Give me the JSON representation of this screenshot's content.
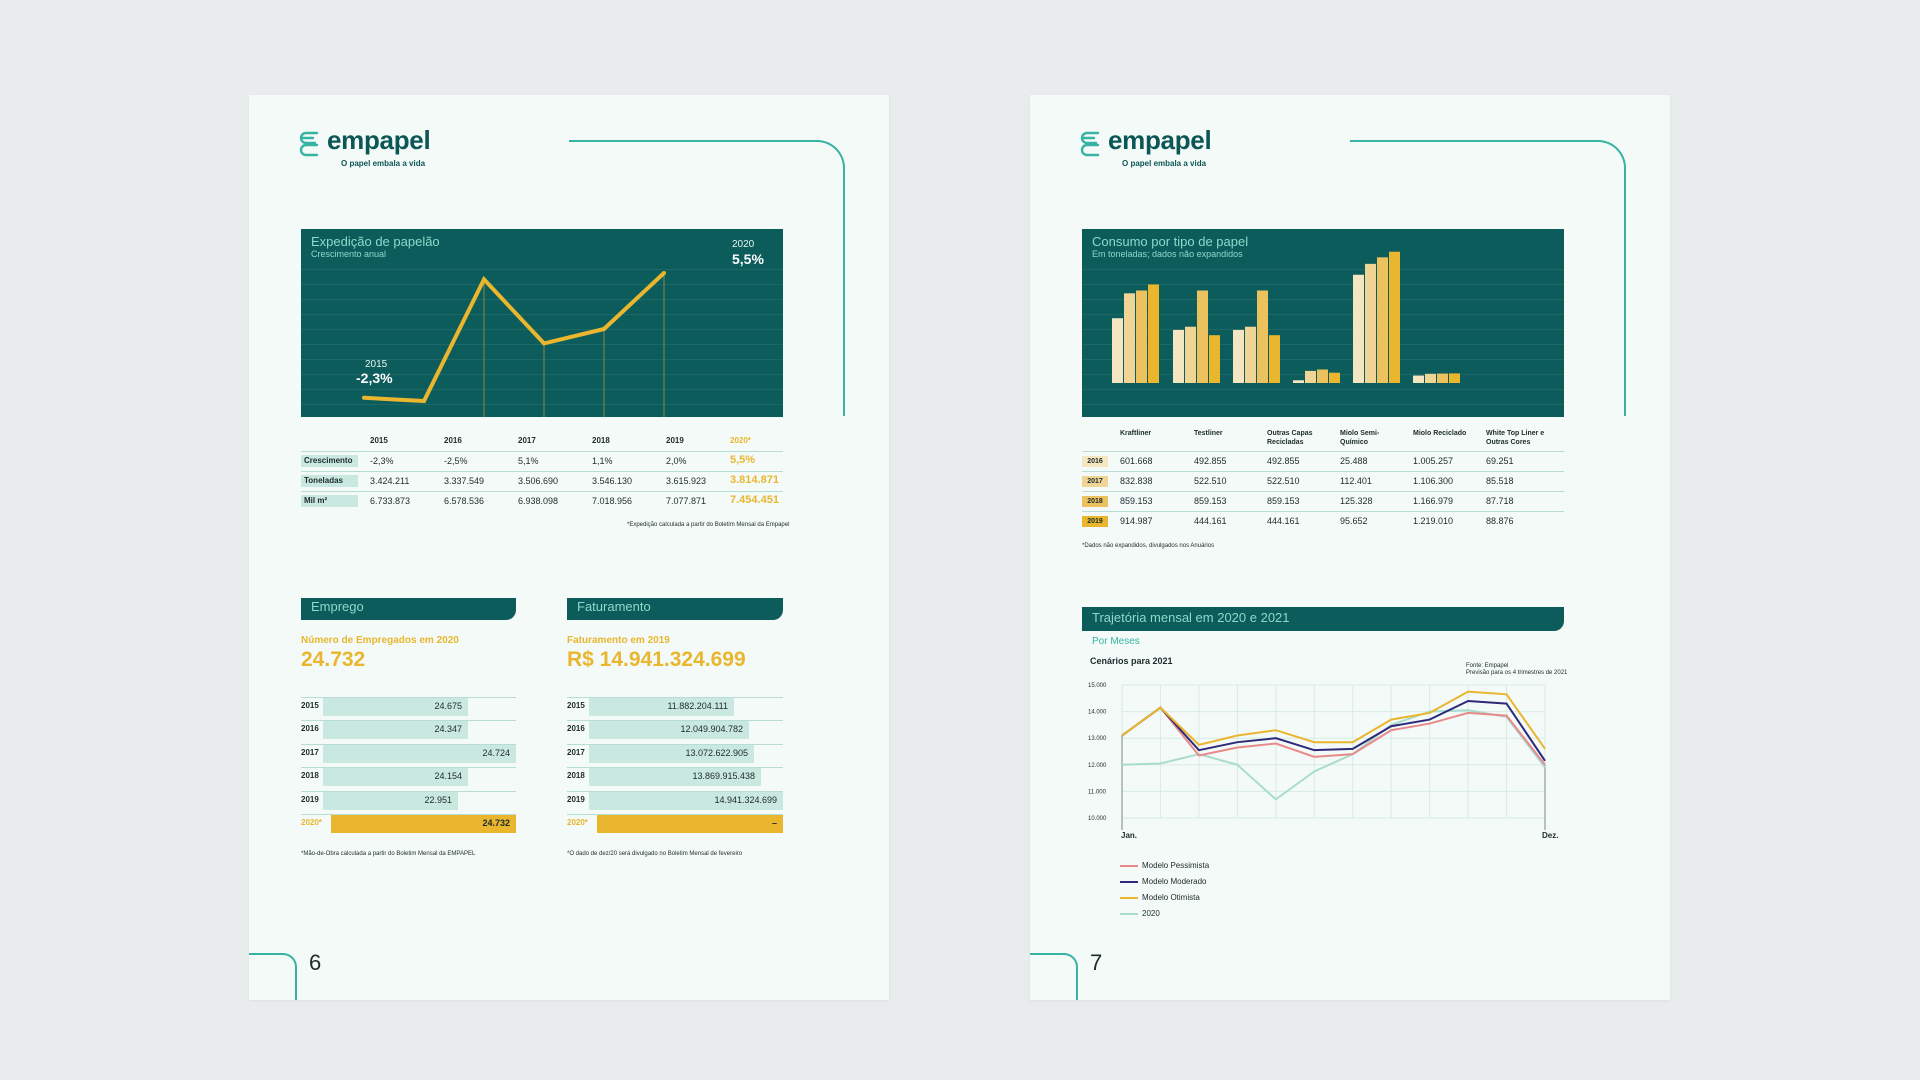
{
  "brand": {
    "name": "empapel",
    "tagline": "O papel embala a vida",
    "colors": {
      "teal_dark": "#0d5c5c",
      "accent_teal": "#36b3a3",
      "gold": "#e9b62e",
      "mint": "#c9e8df"
    }
  },
  "page6": {
    "page_number": "6",
    "expedicao": {
      "title": "Expedição de papelão",
      "subtitle": "Crescimento anual",
      "label_2015_year": "2015",
      "label_2015_value": "-2,3%",
      "label_2020_year": "2020",
      "label_2020_value": "5,5%",
      "years": [
        "2015",
        "2016",
        "2017",
        "2018",
        "2019",
        "2020*"
      ],
      "rows": [
        {
          "label": "Crescimento",
          "values": [
            "-2,3%",
            "-2,5%",
            "5,1%",
            "1,1%",
            "2,0%",
            "5,5%"
          ]
        },
        {
          "label": "Toneladas",
          "values": [
            "3.424.211",
            "3.337.549",
            "3.506.690",
            "3.546.130",
            "3.615.923",
            "3.814.871"
          ]
        },
        {
          "label": "Mil m²",
          "values": [
            "6.733.873",
            "6.578.536",
            "6.938.098",
            "7.018.956",
            "7.077.871",
            "7.454.451"
          ]
        }
      ],
      "footnote": "*Expedição calculada a partir do Boletim Mensal da Empapel"
    },
    "emprego": {
      "header": "Emprego",
      "label": "Número de Empregados em 2020",
      "big_value": "24.732",
      "rows": [
        {
          "year": "2015",
          "value": "24.675"
        },
        {
          "year": "2016",
          "value": "24.347"
        },
        {
          "year": "2017",
          "value": "24.724"
        },
        {
          "year": "2018",
          "value": "24.154"
        },
        {
          "year": "2019",
          "value": "22.951"
        },
        {
          "year": "2020*",
          "value": "24.732"
        }
      ],
      "footnote": "*Mão-de-Obra calculada a partir do Boletim Mensal da EMPAPEL"
    },
    "faturamento": {
      "header": "Faturamento",
      "label": "Faturamento em 2019",
      "big_value": "R$ 14.941.324.699",
      "rows": [
        {
          "year": "2015",
          "value": "11.882.204.111"
        },
        {
          "year": "2016",
          "value": "12.049.904.782"
        },
        {
          "year": "2017",
          "value": "13.072.622.905"
        },
        {
          "year": "2018",
          "value": "13.869.915.438"
        },
        {
          "year": "2019",
          "value": "14.941.324.699"
        },
        {
          "year": "2020*",
          "value": "–"
        }
      ],
      "footnote": "*O dado de dez/20 será divulgado no Boletim Mensal de fevereiro"
    }
  },
  "page7": {
    "page_number": "7",
    "consumo": {
      "title": "Consumo por tipo de papel",
      "subtitle": "Em toneladas; dados não expandidos",
      "columns": [
        "Kraftliner",
        "Testliner",
        "Outras Capas Recicladas",
        "Miolo Semi-Químico",
        "Miolo Reciclado",
        "White Top Liner e Outras Cores"
      ],
      "rows": [
        {
          "year": "2016",
          "values": [
            "601.668",
            "492.855",
            "492.855",
            "25.488",
            "1.005.257",
            "69.251"
          ]
        },
        {
          "year": "2017",
          "values": [
            "832.838",
            "522.510",
            "522.510",
            "112.401",
            "1.106.300",
            "85.518"
          ]
        },
        {
          "year": "2018",
          "values": [
            "859.153",
            "859.153",
            "859.153",
            "125.328",
            "1.166.979",
            "87.718"
          ]
        },
        {
          "year": "2019",
          "values": [
            "914.987",
            "444.161",
            "444.161",
            "95.652",
            "1.219.010",
            "88.876"
          ]
        }
      ],
      "footnote": "*Dados não expandidos, divulgados nos Anuários"
    },
    "trajetoria": {
      "header": "Trajetória mensal em 2020 e 2021",
      "by": "Por Meses",
      "scenarios_label": "Cenários para 2021",
      "source_line1": "Fonte: Empapel",
      "source_line2": "Previsão para os 4 trimestres de 2021",
      "x_start": "Jan.",
      "x_end": "Dez.",
      "legend": [
        "Modelo Pessimista",
        "Modelo Moderado",
        "Modelo Otimista",
        "2020"
      ]
    }
  },
  "chart_data": [
    {
      "type": "line",
      "title": "Expedição de papelão",
      "subtitle": "Crescimento anual",
      "categories": [
        "2015",
        "2016",
        "2017",
        "2018",
        "2019",
        "2020*"
      ],
      "series": [
        {
          "values": [
            -2.3,
            -2.5,
            5.1,
            1.1,
            2.0,
            5.5
          ]
        }
      ],
      "ylim": [
        -3.5,
        6.5
      ],
      "grid": true,
      "colors": [
        "#e9b62e"
      ]
    },
    {
      "type": "bar",
      "title": "Consumo por tipo de papel",
      "subtitle": "Em toneladas; dados não expandidos",
      "categories": [
        "Kraftliner",
        "Testliner",
        "Outras Capas Recicladas",
        "Miolo Semi-Químico",
        "Miolo Reciclado",
        "White Top Liner e Outras Cores"
      ],
      "series": [
        {
          "name": "2016",
          "values": [
            601668,
            492855,
            492855,
            25488,
            1005257,
            69251
          ]
        },
        {
          "name": "2017",
          "values": [
            832838,
            522510,
            522510,
            112401,
            1106300,
            85518
          ]
        },
        {
          "name": "2018",
          "values": [
            859153,
            859153,
            859153,
            125328,
            1166979,
            87718
          ]
        },
        {
          "name": "2019",
          "values": [
            914987,
            444161,
            444161,
            95652,
            1219010,
            88876
          ]
        }
      ],
      "ylim": [
        0,
        1300000
      ],
      "colors": [
        "#f5e6c2",
        "#f0d597",
        "#ecc25e",
        "#e9b62e"
      ]
    },
    {
      "type": "line",
      "title": "Trajetória mensal em 2020 e 2021",
      "x_range": [
        "Jan.",
        "Dez."
      ],
      "yticks": [
        "10.000",
        "11.000",
        "12.000",
        "13.000",
        "14.000",
        "15.000"
      ],
      "ylim": [
        10000,
        15000
      ],
      "x": [
        1,
        2,
        3,
        4,
        5,
        6,
        7,
        8,
        9,
        10,
        11,
        12
      ],
      "series": [
        {
          "name": "Modelo Pessimista",
          "color": "#e98a8a",
          "values": [
            13100,
            14150,
            12350,
            12650,
            12800,
            12300,
            12400,
            13300,
            13550,
            13950,
            13850,
            12000
          ]
        },
        {
          "name": "Modelo Moderado",
          "color": "#2e2a7a",
          "values": [
            13100,
            14150,
            12550,
            12850,
            13000,
            12550,
            12600,
            13450,
            13700,
            14400,
            14300,
            12150
          ]
        },
        {
          "name": "Modelo Otimista",
          "color": "#e9b62e",
          "values": [
            13100,
            14150,
            12750,
            13100,
            13300,
            12850,
            12850,
            13700,
            13950,
            14750,
            14650,
            12600
          ]
        },
        {
          "name": "2020",
          "color": "#a8dccd",
          "values": [
            12000,
            12050,
            12400,
            12000,
            10700,
            11750,
            12400,
            13500,
            14000,
            14050,
            13800,
            11900
          ]
        }
      ],
      "grid": true
    }
  ]
}
